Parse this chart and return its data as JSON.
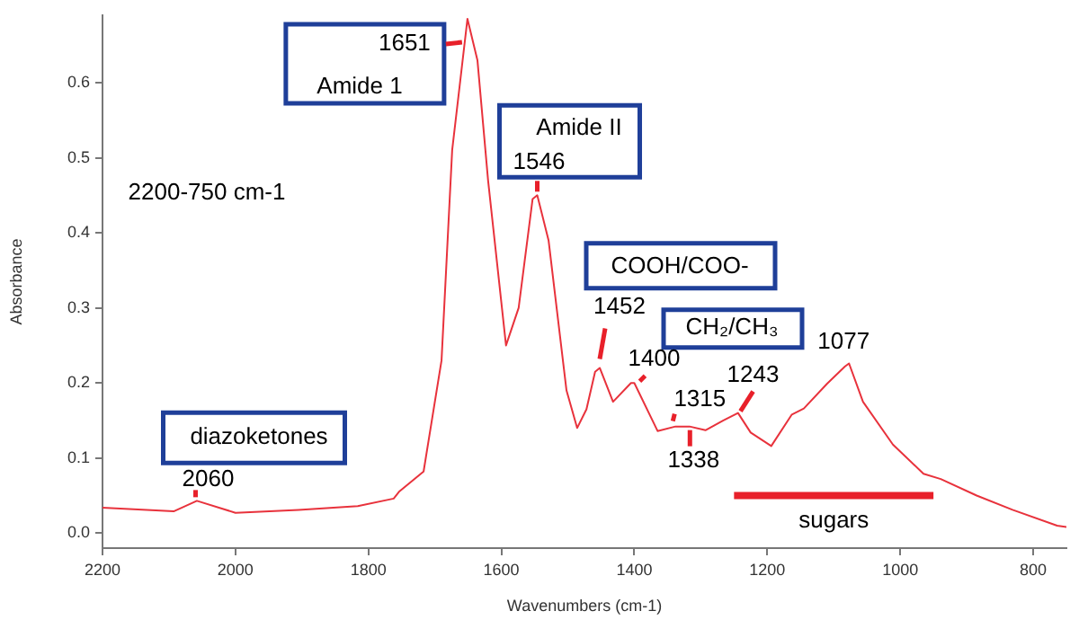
{
  "chart_data": {
    "type": "line",
    "xlabel": "Wavenumbers (cm-1)",
    "ylabel": "Absorbance",
    "x": [
      2200,
      2093,
      2058,
      2000,
      1905,
      1816,
      1762,
      1754,
      1717,
      1690,
      1674,
      1651,
      1636,
      1620,
      1593,
      1574,
      1553,
      1546,
      1529,
      1502,
      1486,
      1472,
      1459,
      1452,
      1432,
      1405,
      1400,
      1365,
      1338,
      1317,
      1293,
      1266,
      1244,
      1225,
      1194,
      1163,
      1145,
      1110,
      1083,
      1077,
      1056,
      1011,
      965,
      939,
      885,
      831,
      764,
      750
    ],
    "series": [
      {
        "color": "#e8323c",
        "values": [
          0.034,
          0.029,
          0.043,
          0.027,
          0.031,
          0.036,
          0.046,
          0.055,
          0.082,
          0.23,
          0.51,
          0.685,
          0.63,
          0.47,
          0.25,
          0.3,
          0.445,
          0.45,
          0.39,
          0.19,
          0.14,
          0.165,
          0.215,
          0.22,
          0.175,
          0.2,
          0.2,
          0.136,
          0.142,
          0.142,
          0.137,
          0.15,
          0.16,
          0.134,
          0.116,
          0.158,
          0.166,
          0.199,
          0.222,
          0.226,
          0.175,
          0.118,
          0.079,
          0.072,
          0.05,
          0.031,
          0.01,
          0.008
        ]
      },
      {
        "x": [
          1250,
          950
        ],
        "values": [
          0.05,
          0.05
        ],
        "color": "#e8202a"
      }
    ],
    "xlim": [
      2200,
      750
    ],
    "xticks": [
      2200,
      2000,
      1800,
      1600,
      1400,
      1200,
      1000,
      800
    ],
    "ylim": [
      -0.02,
      0.69
    ],
    "yticks": [
      {
        "value": 0,
        "label": "0.0"
      },
      0.1,
      0.2,
      0.3,
      0.4,
      0.5,
      0.6
    ],
    "grid": false,
    "legend": false,
    "marker": "none",
    "line_style": "solid",
    "annotations": [
      {
        "text": "sugars",
        "x": 1100,
        "y": 0.05
      },
      {
        "text": "1651",
        "x": 1651,
        "y": 0.685
      },
      {
        "text": "1546",
        "x": 1546,
        "y": 0.45
      },
      {
        "text": "1452",
        "x": 1452,
        "y": 0.22
      },
      {
        "text": "1400",
        "x": 1400,
        "y": 0.2
      },
      {
        "text": "1315",
        "x": 1315,
        "y": 0.142
      },
      {
        "text": "1338",
        "x": 1338,
        "y": 0.142
      },
      {
        "text": "1243",
        "x": 1243,
        "y": 0.16
      },
      {
        "text": "1077",
        "x": 1077,
        "y": 0.226
      },
      {
        "text": "2060",
        "x": 2060,
        "y": 0.043
      },
      "Amide 1",
      "Amide II",
      "COOH/COO-",
      "CH₂/CH₃",
      "diazoketones",
      "2200-750 cm-1"
    ]
  }
}
